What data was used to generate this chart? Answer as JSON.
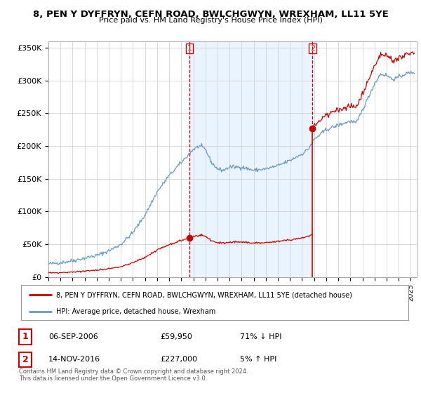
{
  "title": "8, PEN Y DYFFRYN, CEFN ROAD, BWLCHGWYN, WREXHAM, LL11 5YE",
  "subtitle": "Price paid vs. HM Land Registry's House Price Index (HPI)",
  "ylabel_ticks": [
    "£0",
    "£50K",
    "£100K",
    "£150K",
    "£200K",
    "£250K",
    "£300K",
    "£350K"
  ],
  "ytick_values": [
    0,
    50000,
    100000,
    150000,
    200000,
    250000,
    300000,
    350000
  ],
  "ylim": [
    0,
    360000
  ],
  "xlim_start": 1995.0,
  "xlim_end": 2025.5,
  "hpi_color": "#6699cc",
  "property_color": "#cc0000",
  "sale1_date": 2006.67,
  "sale1_price": 59950,
  "sale2_date": 2016.87,
  "sale2_price": 227000,
  "legend_property": "8, PEN Y DYFFRYN, CEFN ROAD, BWLCHGWYN, WREXHAM, LL11 5YE (detached house)",
  "legend_hpi": "HPI: Average price, detached house, Wrexham",
  "annotation1_label": "1",
  "annotation1_date_str": "06-SEP-2006",
  "annotation1_price_str": "£59,950",
  "annotation1_pct": "71% ↓ HPI",
  "annotation2_label": "2",
  "annotation2_date_str": "14-NOV-2016",
  "annotation2_price_str": "£227,000",
  "annotation2_pct": "5% ↑ HPI",
  "footer": "Contains HM Land Registry data © Crown copyright and database right 2024.\nThis data is licensed under the Open Government Licence v3.0.",
  "background_color": "#ffffff",
  "grid_color": "#cccccc",
  "shade_color": "#ddeeff"
}
